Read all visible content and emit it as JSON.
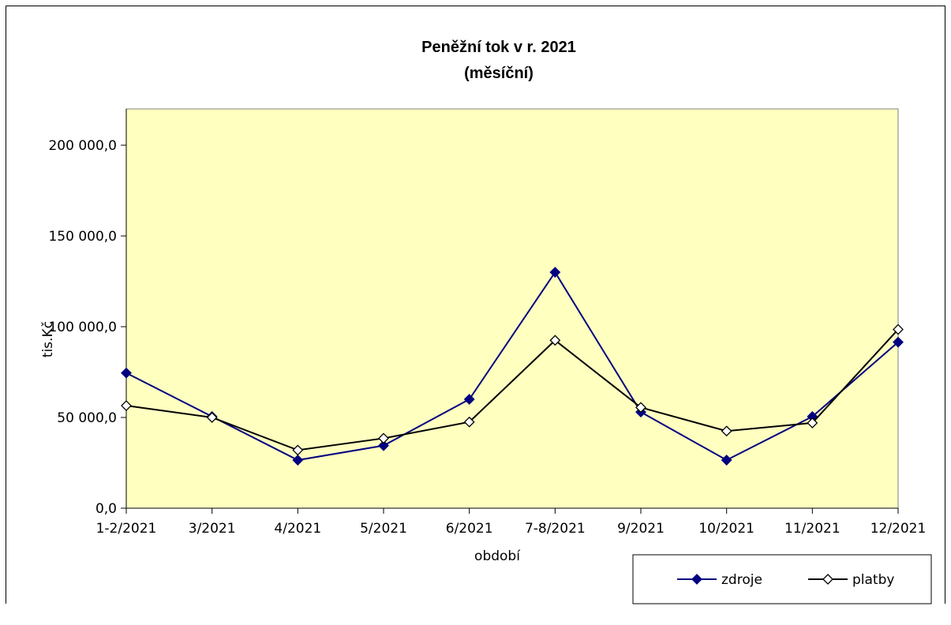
{
  "chart_data": {
    "type": "line",
    "title": "Peněžní tok v r. 2021",
    "subtitle": "(měsíční)",
    "xlabel": "období",
    "ylabel": "tis.Kč",
    "categories": [
      "1-2/2021",
      "3/2021",
      "4/2021",
      "5/2021",
      "6/2021",
      "7-8/2021",
      "9/2021",
      "10/2021",
      "11/2021",
      "12/2021"
    ],
    "series": [
      {
        "name": "zdroje",
        "color": "#000080",
        "marker": "filled-diamond",
        "values": [
          74500,
          50500,
          26500,
          34500,
          60000,
          130000,
          53000,
          26500,
          50500,
          91500
        ]
      },
      {
        "name": "platby",
        "color": "#000000",
        "marker": "hollow-diamond",
        "values": [
          56500,
          50000,
          32000,
          38500,
          47500,
          92500,
          55500,
          42500,
          47000,
          98500
        ]
      }
    ],
    "yticks": [
      "0,0",
      "50 000,0",
      "100 000,0",
      "150 000,0",
      "200 000,0"
    ],
    "ylim": [
      0,
      220000
    ],
    "plot_background": "#FFFFC0",
    "grid": false,
    "legend_position": "bottom-right"
  }
}
